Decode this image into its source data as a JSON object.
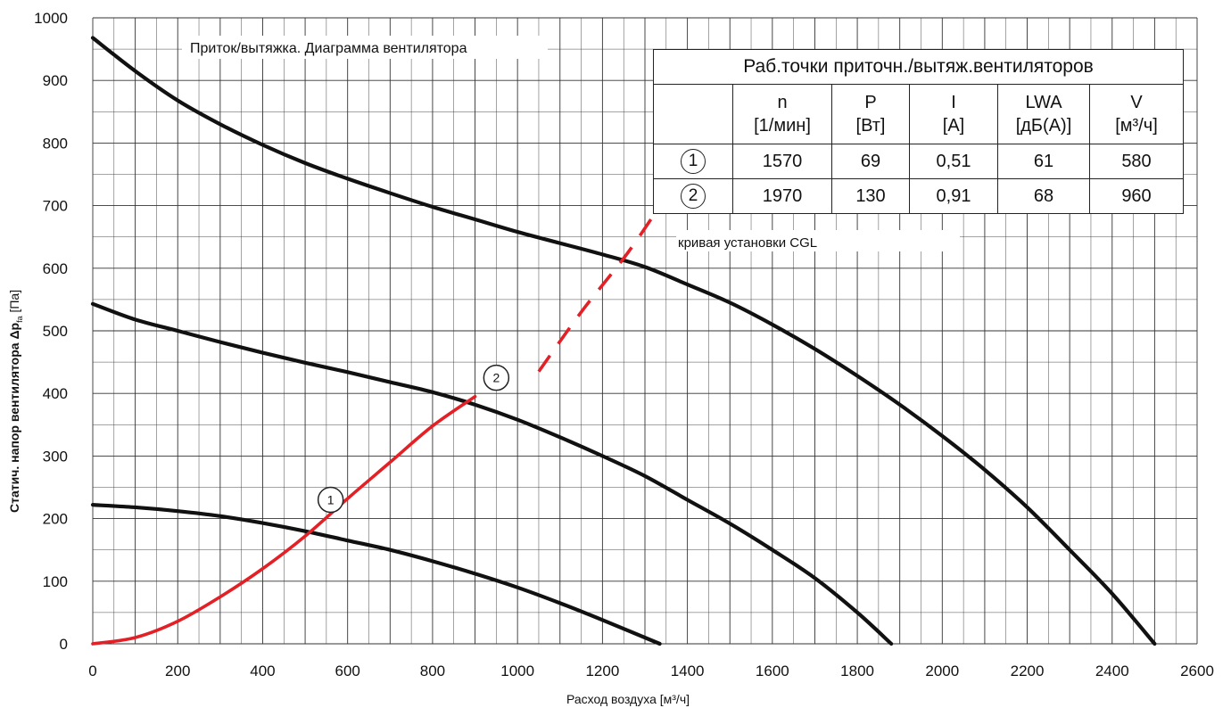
{
  "chart_data": {
    "type": "line",
    "title": "Приток/вытяжка. Диаграмма вентилятора",
    "xlabel": "Расход воздуха [м³/ч]",
    "ylabel": "Статич. напор вентилятора Δp",
    "ylabel_sub": "fa",
    "ylabel_unit": " [Па]",
    "xlim": [
      0,
      2600
    ],
    "ylim": [
      0,
      1000
    ],
    "xticks": [
      0,
      200,
      400,
      600,
      800,
      1000,
      1200,
      1400,
      1600,
      1800,
      2000,
      2200,
      2400,
      2600
    ],
    "yticks": [
      0,
      100,
      200,
      300,
      400,
      500,
      600,
      700,
      800,
      900,
      1000
    ],
    "grid": true,
    "series": [
      {
        "color": "#111111",
        "points": [
          [
            0,
            968
          ],
          [
            100,
            915
          ],
          [
            200,
            868
          ],
          [
            300,
            830
          ],
          [
            400,
            797
          ],
          [
            500,
            768
          ],
          [
            600,
            743
          ],
          [
            700,
            720
          ],
          [
            800,
            698
          ],
          [
            900,
            678
          ],
          [
            1000,
            658
          ],
          [
            1100,
            640
          ],
          [
            1200,
            622
          ],
          [
            1300,
            602
          ],
          [
            1400,
            574
          ],
          [
            1500,
            545
          ],
          [
            1600,
            510
          ],
          [
            1700,
            471
          ],
          [
            1800,
            428
          ],
          [
            1900,
            382
          ],
          [
            2000,
            332
          ],
          [
            2100,
            278
          ],
          [
            2200,
            218
          ],
          [
            2300,
            150
          ],
          [
            2400,
            80
          ],
          [
            2500,
            0
          ]
        ]
      },
      {
        "color": "#111111",
        "points": [
          [
            0,
            543
          ],
          [
            100,
            518
          ],
          [
            200,
            500
          ],
          [
            300,
            482
          ],
          [
            400,
            465
          ],
          [
            500,
            449
          ],
          [
            600,
            434
          ],
          [
            700,
            418
          ],
          [
            800,
            402
          ],
          [
            900,
            382
          ],
          [
            1000,
            358
          ],
          [
            1100,
            330
          ],
          [
            1200,
            300
          ],
          [
            1300,
            268
          ],
          [
            1400,
            230
          ],
          [
            1500,
            192
          ],
          [
            1600,
            150
          ],
          [
            1700,
            105
          ],
          [
            1800,
            50
          ],
          [
            1880,
            0
          ]
        ]
      },
      {
        "color": "#111111",
        "points": [
          [
            0,
            222
          ],
          [
            100,
            218
          ],
          [
            200,
            212
          ],
          [
            300,
            204
          ],
          [
            400,
            193
          ],
          [
            500,
            180
          ],
          [
            600,
            165
          ],
          [
            700,
            150
          ],
          [
            800,
            132
          ],
          [
            900,
            112
          ],
          [
            1000,
            90
          ],
          [
            1100,
            65
          ],
          [
            1200,
            38
          ],
          [
            1335,
            0
          ]
        ]
      }
    ],
    "system_curve": {
      "name": "кривая установки CGL",
      "color": "#e32026",
      "solid_points": [
        [
          0,
          0
        ],
        [
          100,
          10
        ],
        [
          200,
          36
        ],
        [
          300,
          75
        ],
        [
          400,
          120
        ],
        [
          500,
          172
        ],
        [
          600,
          232
        ],
        [
          700,
          290
        ],
        [
          800,
          348
        ],
        [
          900,
          395
        ]
      ],
      "dashed_points": [
        [
          1050,
          435
        ],
        [
          1150,
          530
        ],
        [
          1260,
          625
        ],
        [
          1350,
          715
        ]
      ]
    },
    "operating_points": [
      {
        "label": "1",
        "x": 560,
        "y": 230
      },
      {
        "label": "2",
        "x": 950,
        "y": 425
      }
    ]
  },
  "table": {
    "title": "Раб.точки приточн./вытяж.вентиляторов",
    "headers": [
      {
        "name": "n",
        "unit": "[1/мин]"
      },
      {
        "name": "P",
        "unit": "[Вт]"
      },
      {
        "name": "I",
        "unit": "[А]"
      },
      {
        "name": "LWA",
        "unit": "[дБ(А)]"
      },
      {
        "name": "V",
        "unit": "[м³/ч]"
      }
    ],
    "rows": [
      {
        "marker": "1",
        "n": "1570",
        "p": "69",
        "i": "0,51",
        "lwa": "61",
        "v": "580"
      },
      {
        "marker": "2",
        "n": "1970",
        "p": "130",
        "i": "0,91",
        "lwa": "68",
        "v": "960"
      }
    ]
  }
}
